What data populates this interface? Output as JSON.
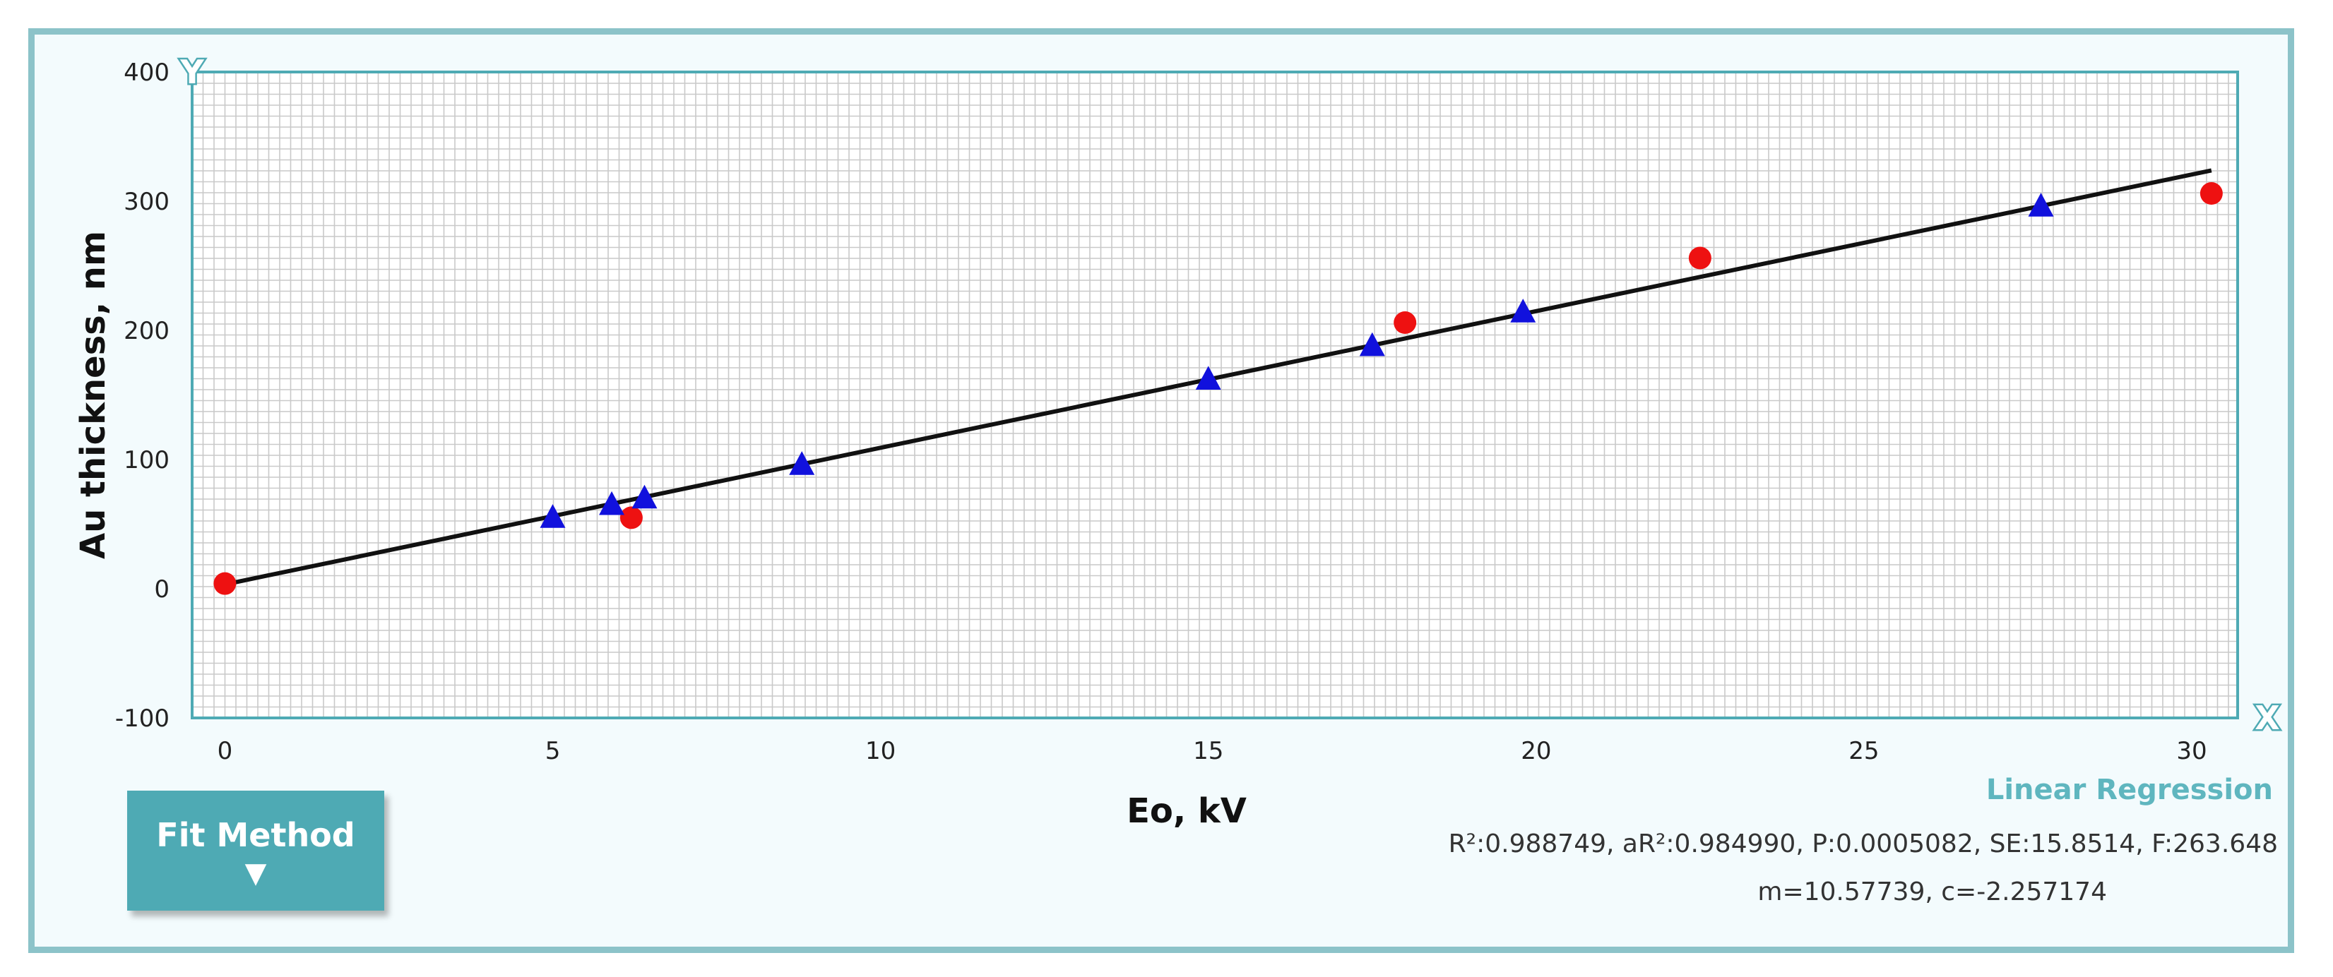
{
  "colors": {
    "frame": "#8cc3c9",
    "accent": "#4eaab4",
    "grid": "#c9c9c9",
    "fit_line": "#111111",
    "circle_series": "#ee1111",
    "triangle_series": "#1111dd"
  },
  "chart_data": {
    "type": "scatter",
    "title": "",
    "xlabel": "Eo, kV",
    "ylabel": "Au thickness, nm",
    "xlim": [
      -0.5,
      30.7
    ],
    "ylim": [
      -100,
      400
    ],
    "xticks": [
      0,
      5,
      10,
      15,
      20,
      25,
      30
    ],
    "xtick_labels": [
      "0",
      "5",
      "10",
      "15",
      "20",
      "25",
      "30"
    ],
    "yticks": [
      -100,
      0,
      100,
      200,
      300,
      400
    ],
    "ytick_labels": [
      "-100",
      "0",
      "100",
      "200",
      "300",
      "400"
    ],
    "grid": true,
    "series": [
      {
        "name": "circles",
        "marker": "circle",
        "x": [
          0,
          6.2,
          18,
          22.5,
          30.3
        ],
        "y": [
          4,
          55,
          206,
          256,
          306
        ]
      },
      {
        "name": "triangles",
        "marker": "triangle",
        "x": [
          5,
          5.9,
          6.4,
          8.8,
          15,
          17.5,
          19.8,
          27.7
        ],
        "y": [
          55,
          65,
          70,
          96,
          162,
          188,
          214,
          296
        ]
      }
    ],
    "fit": {
      "name": "Linear Regression",
      "m": 10.57739,
      "c": -2.257174,
      "x_range": [
        0,
        30.3
      ]
    },
    "axis_markers": {
      "x": "X",
      "y": "Y"
    }
  },
  "regression": {
    "title": "Linear Regression",
    "stats": "R²:0.988749, aR²:0.984990, P:0.0005082, SE:15.8514, F:263.648",
    "coefficients": "m=10.57739, c=-2.257174"
  },
  "controls": {
    "fit_method_label": "Fit Method",
    "fit_method_arrow": "▼"
  }
}
